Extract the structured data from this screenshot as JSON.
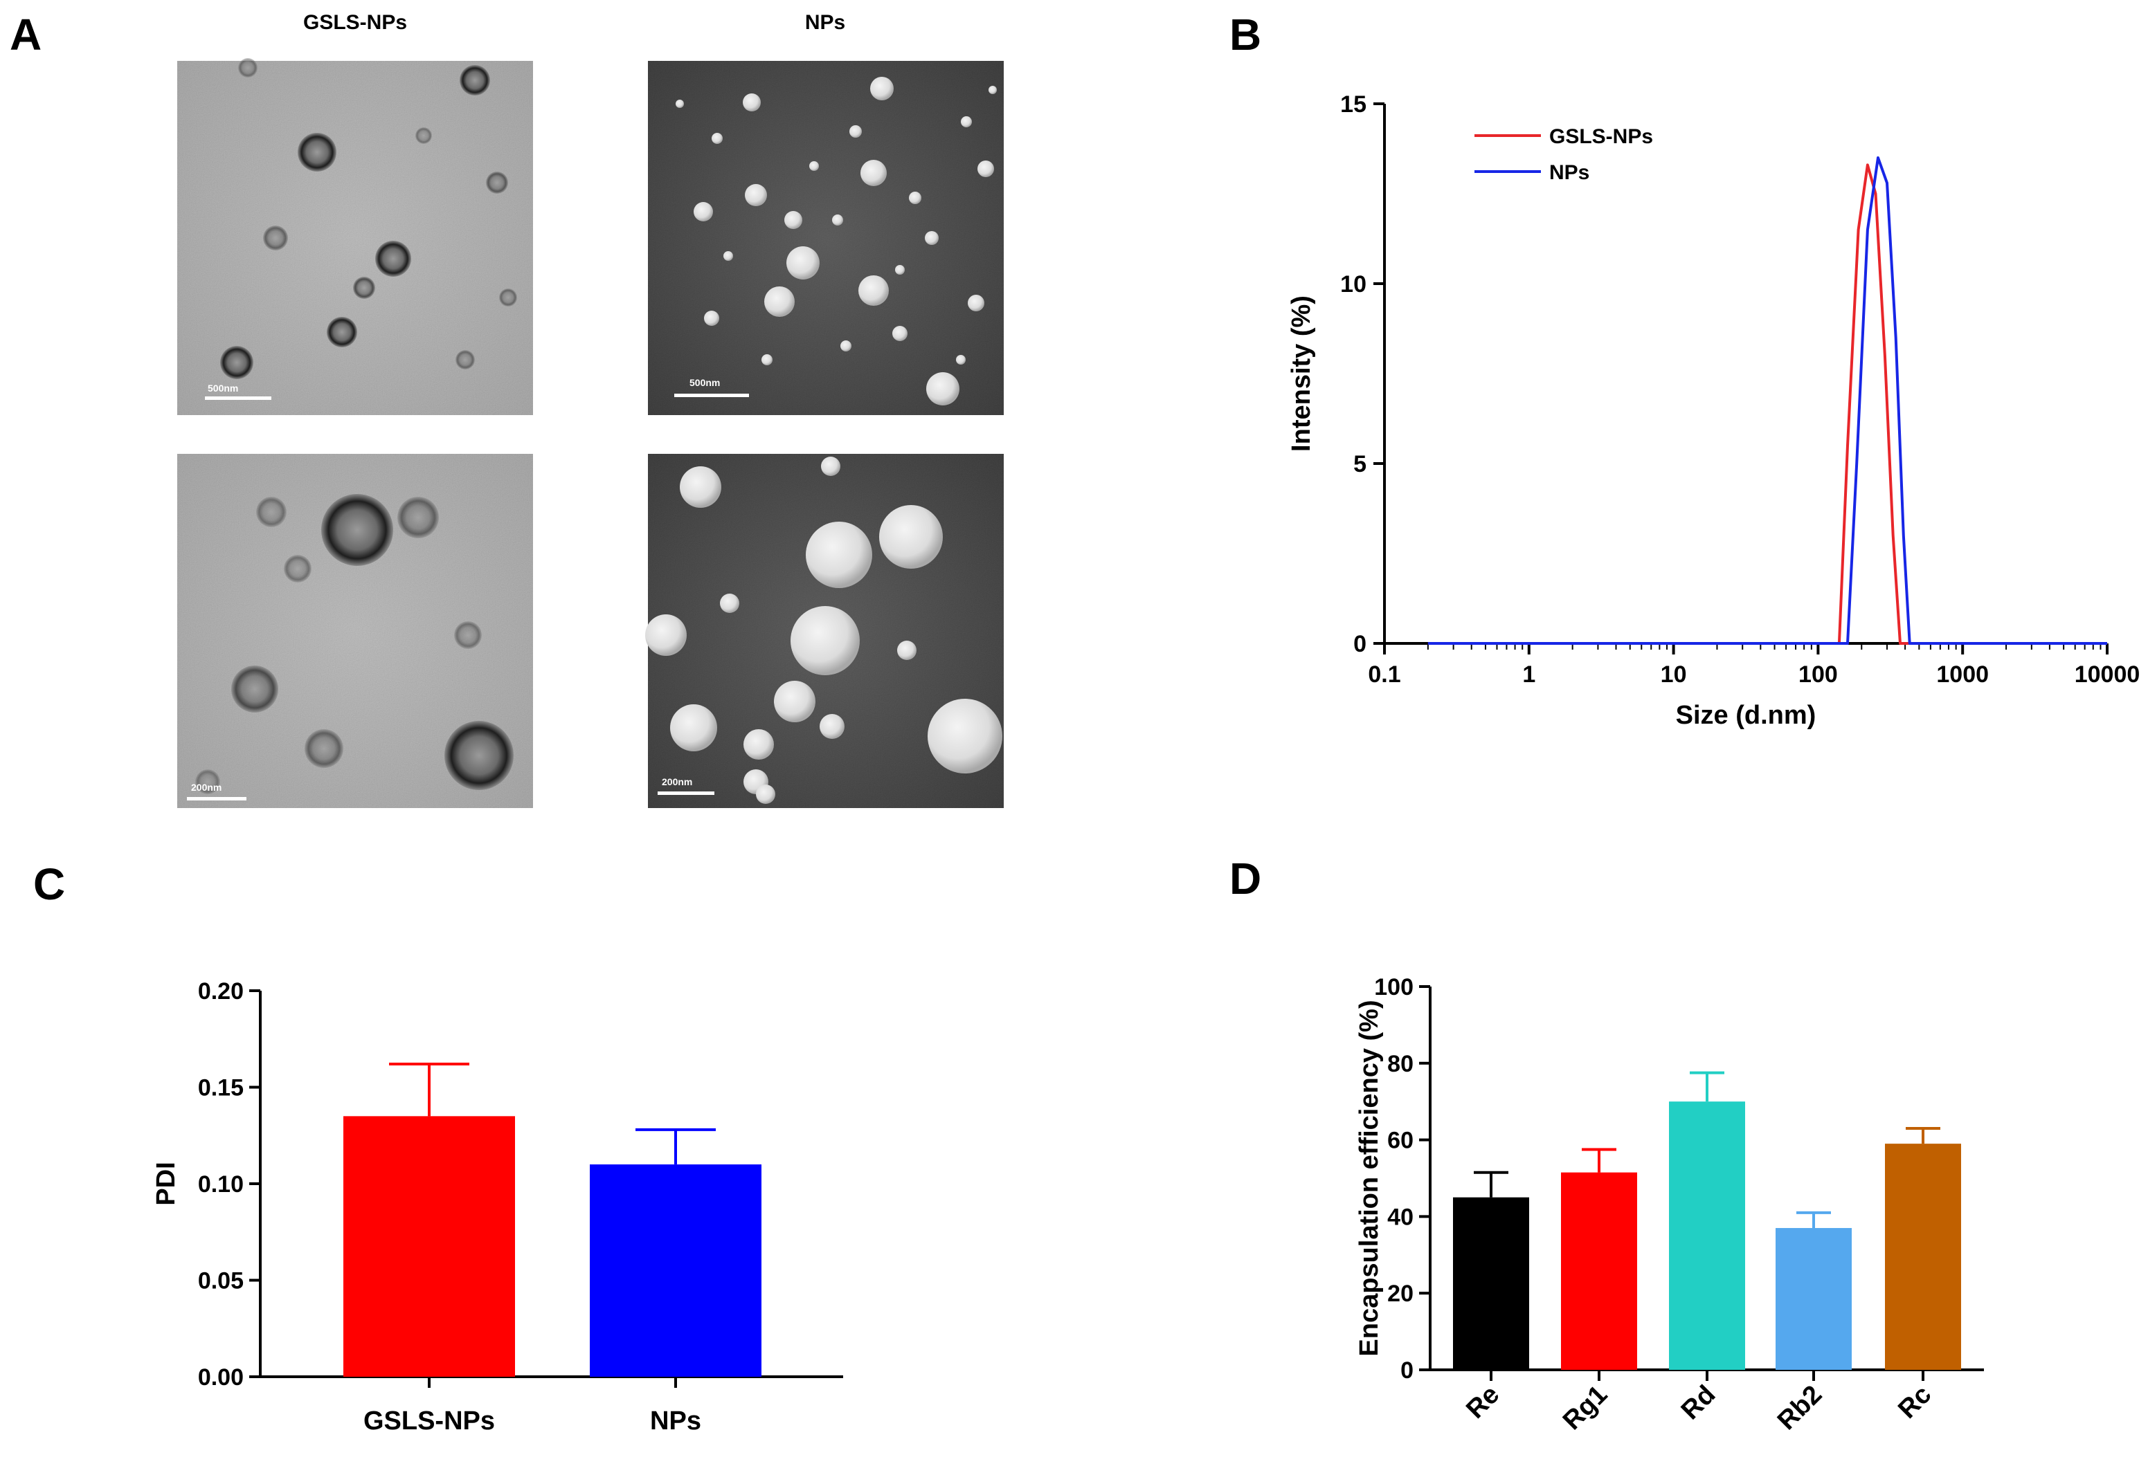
{
  "panels": {
    "a": {
      "letter": "A"
    },
    "b": {
      "letter": "B"
    },
    "c": {
      "letter": "C"
    },
    "d": {
      "letter": "D"
    }
  },
  "micrographs": {
    "col_headers": [
      "GSLS-NPs",
      "NPs"
    ],
    "scale_bars": [
      "500nm",
      "500nm",
      "200nm",
      "200nm"
    ]
  },
  "colors": {
    "red": "#ff0000",
    "blue": "#0000ff",
    "teal": "#22cfc4",
    "light_blue": "#55a8ee",
    "orange": "#c06000",
    "black": "#000000",
    "dls_red": "#e8262a",
    "dls_blue": "#1726e6"
  },
  "chart_data": [
    {
      "id": "B",
      "type": "line",
      "xscale": "log",
      "xlabel": "Size (d.nm)",
      "ylabel": "Intensity (%)",
      "xlim": [
        0.1,
        10000
      ],
      "ylim": [
        0,
        15
      ],
      "xticks": [
        "0.1",
        "1",
        "10",
        "100",
        "1000",
        "10000"
      ],
      "yticks": [
        "0",
        "5",
        "10",
        "15"
      ],
      "legend_position": "top-left",
      "series": [
        {
          "name": "GSLS-NPs",
          "color": "#e8262a",
          "x": [
            0.2,
            140,
            160,
            190,
            220,
            250,
            290,
            330,
            370,
            10000
          ],
          "y": [
            0,
            0,
            5.5,
            11.5,
            13.3,
            12.5,
            8.0,
            3.0,
            0,
            0
          ]
        },
        {
          "name": "NPs",
          "color": "#1726e6",
          "x": [
            0.2,
            160,
            185,
            220,
            260,
            300,
            345,
            390,
            430,
            10000
          ],
          "y": [
            0,
            0,
            5.0,
            11.5,
            13.5,
            12.8,
            8.5,
            3.0,
            0,
            0
          ]
        }
      ]
    },
    {
      "id": "C",
      "type": "bar",
      "categories": [
        "GSLS-NPs",
        "NPs"
      ],
      "values": [
        0.135,
        0.11
      ],
      "errors": [
        0.027,
        0.018
      ],
      "colors": [
        "#ff0000",
        "#0000ff"
      ],
      "ylabel": "PDI",
      "xlabel": "",
      "ylim": [
        0,
        0.2
      ],
      "yticks": [
        "0.00",
        "0.05",
        "0.10",
        "0.15",
        "0.20"
      ]
    },
    {
      "id": "D",
      "type": "bar",
      "categories": [
        "Re",
        "Rg1",
        "Rd",
        "Rb2",
        "Rc"
      ],
      "values": [
        45,
        51.5,
        70,
        37,
        59
      ],
      "errors": [
        6.5,
        6,
        7.5,
        4,
        4
      ],
      "colors": [
        "#000000",
        "#ff0000",
        "#22cfc4",
        "#55a8ee",
        "#c06000"
      ],
      "ylabel": "Encapsulation efficiency (%)",
      "xlabel": "",
      "ylim": [
        0,
        100
      ],
      "yticks": [
        "0",
        "20",
        "40",
        "60",
        "80",
        "100"
      ]
    }
  ]
}
